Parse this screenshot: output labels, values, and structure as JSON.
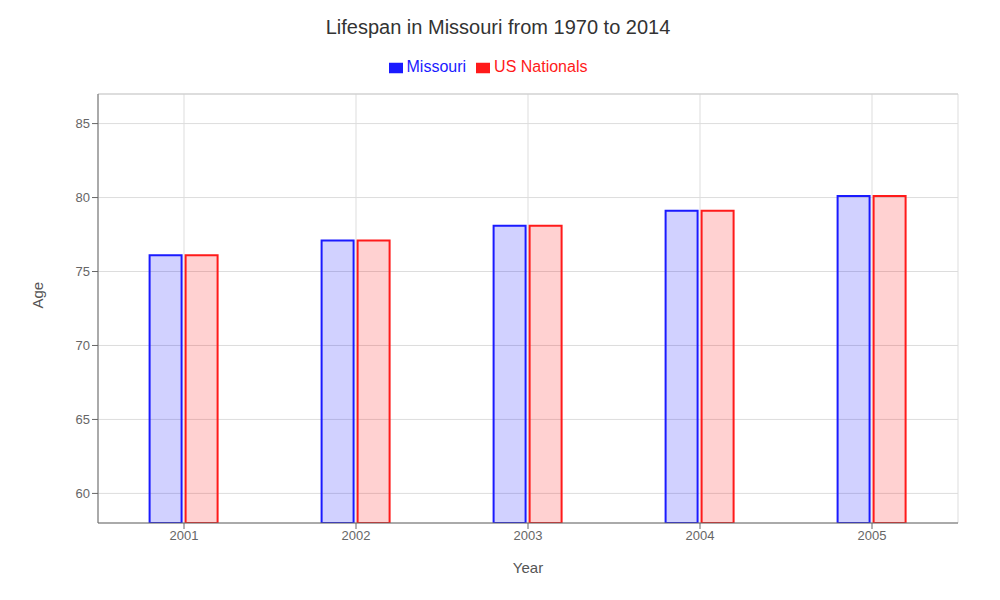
{
  "chart_data": {
    "type": "bar",
    "title": "Lifespan in Missouri from 1970 to 2014",
    "xlabel": "Year",
    "ylabel": "Age",
    "categories": [
      "2001",
      "2002",
      "2003",
      "2004",
      "2005"
    ],
    "series": [
      {
        "name": "Missouri",
        "color": "#1a1aff",
        "values": [
          76.1,
          77.1,
          78.1,
          79.1,
          80.1
        ]
      },
      {
        "name": "US Nationals",
        "color": "#ff1a1a",
        "values": [
          76.1,
          77.1,
          78.1,
          79.1,
          80.1
        ]
      }
    ],
    "ylim": [
      58,
      87
    ],
    "yticks": [
      60,
      65,
      70,
      75,
      80,
      85
    ],
    "grid": true,
    "legend": "top"
  }
}
